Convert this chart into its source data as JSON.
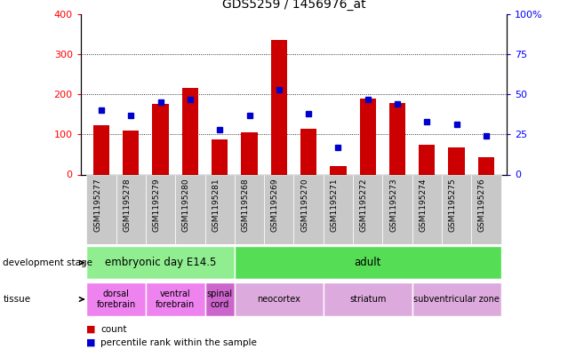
{
  "title": "GDS5259 / 1456976_at",
  "samples": [
    "GSM1195277",
    "GSM1195278",
    "GSM1195279",
    "GSM1195280",
    "GSM1195281",
    "GSM1195268",
    "GSM1195269",
    "GSM1195270",
    "GSM1195271",
    "GSM1195272",
    "GSM1195273",
    "GSM1195274",
    "GSM1195275",
    "GSM1195276"
  ],
  "counts": [
    122,
    110,
    175,
    215,
    88,
    105,
    335,
    115,
    22,
    190,
    178,
    75,
    68,
    44
  ],
  "percentiles": [
    40,
    37,
    45,
    47,
    28,
    37,
    53,
    38,
    17,
    47,
    44,
    33,
    31,
    24
  ],
  "ylim_left": [
    0,
    400
  ],
  "ylim_right": [
    0,
    100
  ],
  "yticks_left": [
    0,
    100,
    200,
    300,
    400
  ],
  "yticks_right": [
    0,
    25,
    50,
    75,
    100
  ],
  "bar_color": "#cc0000",
  "square_color": "#0000cc",
  "development_stages": [
    {
      "label": "embryonic day E14.5",
      "start": 0,
      "end": 4,
      "color": "#90ee90"
    },
    {
      "label": "adult",
      "start": 5,
      "end": 13,
      "color": "#55dd55"
    }
  ],
  "tissues": [
    {
      "label": "dorsal\nforebrain",
      "start": 0,
      "end": 1,
      "color": "#ee82ee"
    },
    {
      "label": "ventral\nforebrain",
      "start": 2,
      "end": 3,
      "color": "#ee82ee"
    },
    {
      "label": "spinal\ncord",
      "start": 4,
      "end": 4,
      "color": "#cc66cc"
    },
    {
      "label": "neocortex",
      "start": 5,
      "end": 7,
      "color": "#ddaadd"
    },
    {
      "label": "striatum",
      "start": 8,
      "end": 10,
      "color": "#ddaadd"
    },
    {
      "label": "subventricular zone",
      "start": 11,
      "end": 13,
      "color": "#ddaadd"
    }
  ],
  "legend_items": [
    {
      "label": "count",
      "color": "#cc0000"
    },
    {
      "label": "percentile rank within the sample",
      "color": "#0000cc"
    }
  ]
}
